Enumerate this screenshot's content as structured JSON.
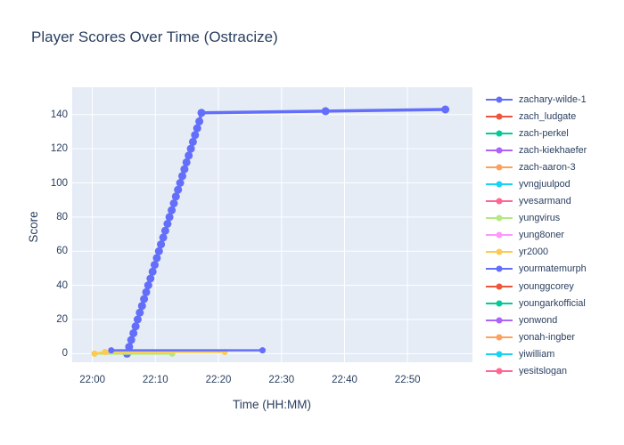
{
  "chart_data": {
    "type": "line",
    "title": "Player Scores Over Time (Ostracize)",
    "xlabel": "Time (HH:MM)",
    "ylabel": "Score",
    "x_ticks": [
      "22:00",
      "22:10",
      "22:20",
      "22:30",
      "22:40",
      "22:50"
    ],
    "y_ticks": [
      0,
      20,
      40,
      60,
      80,
      100,
      120,
      140
    ],
    "x_range_minutes": [
      -3.2,
      60.3
    ],
    "y_range": [
      -5,
      156
    ],
    "plot_bg": "#e5ecf6",
    "grid_color": "#ffffff",
    "paper_bg": "#ffffff",
    "font_color": "#2a3f5f",
    "legend_position": "right",
    "grid": true,
    "series": [
      {
        "name": "zachary-wilde-1",
        "color": "#636EFA",
        "line_width": 3.5,
        "marker_size": 4.5,
        "points": [
          [
            "22:05:30",
            0
          ],
          [
            "22:05:50",
            4
          ],
          [
            "22:06:10",
            8
          ],
          [
            "22:06:31",
            12
          ],
          [
            "22:06:51",
            16
          ],
          [
            "22:07:11",
            20
          ],
          [
            "22:07:31",
            24
          ],
          [
            "22:07:52",
            28
          ],
          [
            "22:08:12",
            32
          ],
          [
            "22:08:32",
            36
          ],
          [
            "22:08:52",
            40
          ],
          [
            "22:09:13",
            44
          ],
          [
            "22:09:33",
            48
          ],
          [
            "22:09:53",
            52
          ],
          [
            "22:10:13",
            56
          ],
          [
            "22:10:34",
            60
          ],
          [
            "22:10:53",
            64
          ],
          [
            "22:11:14",
            68
          ],
          [
            "22:11:34",
            72
          ],
          [
            "22:11:55",
            76
          ],
          [
            "22:12:14",
            80
          ],
          [
            "22:12:35",
            84
          ],
          [
            "22:12:55",
            88
          ],
          [
            "22:13:15",
            92
          ],
          [
            "22:13:35",
            96
          ],
          [
            "22:13:56",
            100
          ],
          [
            "22:14:16",
            104
          ],
          [
            "22:14:36",
            108
          ],
          [
            "22:14:56",
            112
          ],
          [
            "22:15:17",
            116
          ],
          [
            "22:15:37",
            120
          ],
          [
            "22:15:57",
            124
          ],
          [
            "22:16:17",
            128
          ],
          [
            "22:16:38",
            132
          ],
          [
            "22:16:58",
            136
          ],
          [
            "22:17:18",
            141
          ],
          [
            "22:37:00",
            142
          ],
          [
            "22:56:00",
            143
          ]
        ]
      },
      {
        "name": "zach_ludgate",
        "color": "#EF553B",
        "line_width": 2.5,
        "marker_size": 3.5,
        "points": []
      },
      {
        "name": "zach-perkel",
        "color": "#00CC96",
        "line_width": 2.5,
        "marker_size": 3.5,
        "points": []
      },
      {
        "name": "zach-kiekhaefer",
        "color": "#AB63FA",
        "line_width": 2.5,
        "marker_size": 3.5,
        "points": []
      },
      {
        "name": "zach-aaron-3",
        "color": "#FFA15A",
        "line_width": 2.5,
        "marker_size": 3.5,
        "points": []
      },
      {
        "name": "yvngjuulpod",
        "color": "#19D3F3",
        "line_width": 2.5,
        "marker_size": 3.5,
        "points": []
      },
      {
        "name": "yvesarmand",
        "color": "#FF6692",
        "line_width": 2.5,
        "marker_size": 3.5,
        "points": []
      },
      {
        "name": "yungvirus",
        "color": "#B6E880",
        "line_width": 2.5,
        "marker_size": 3.5,
        "points": [
          [
            "22:00:20",
            0
          ],
          [
            "22:12:40",
            0
          ]
        ]
      },
      {
        "name": "yung8oner",
        "color": "#FF97FF",
        "line_width": 2.5,
        "marker_size": 3.5,
        "points": []
      },
      {
        "name": "yr2000",
        "color": "#FECB52",
        "line_width": 2.5,
        "marker_size": 3.5,
        "points": [
          [
            "22:00:20",
            0
          ],
          [
            "22:02:00",
            1
          ],
          [
            "22:21:00",
            1
          ]
        ]
      },
      {
        "name": "yourmatemurph",
        "color": "#636EFA",
        "line_width": 2.5,
        "marker_size": 3.5,
        "points": [
          [
            "22:03:00",
            2
          ],
          [
            "22:27:00",
            2
          ]
        ]
      },
      {
        "name": "younggcorey",
        "color": "#EF553B",
        "line_width": 2.5,
        "marker_size": 3.5,
        "points": []
      },
      {
        "name": "youngarkofficial",
        "color": "#00CC96",
        "line_width": 2.5,
        "marker_size": 3.5,
        "points": []
      },
      {
        "name": "yonwond",
        "color": "#AB63FA",
        "line_width": 2.5,
        "marker_size": 3.5,
        "points": []
      },
      {
        "name": "yonah-ingber",
        "color": "#FFA15A",
        "line_width": 2.5,
        "marker_size": 3.5,
        "points": []
      },
      {
        "name": "yiwilliam",
        "color": "#19D3F3",
        "line_width": 2.5,
        "marker_size": 3.5,
        "points": []
      },
      {
        "name": "yesitslogan",
        "color": "#FF6692",
        "line_width": 2.5,
        "marker_size": 3.5,
        "points": []
      }
    ]
  }
}
